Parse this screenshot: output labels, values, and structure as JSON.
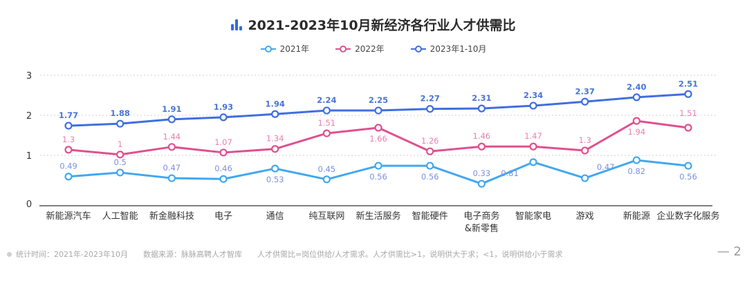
{
  "chart_data": {
    "type": "line",
    "title": "2021-2023年10月新经济各行业人才供需比",
    "xlabel": "",
    "ylabel": "",
    "ylim": [
      0,
      3
    ],
    "yticks": [
      0,
      1,
      2,
      3
    ],
    "grid": true,
    "legend_position": "top-center",
    "categories": [
      "新能源汽车",
      "人工智能",
      "新金融科技",
      "电子",
      "通信",
      "纯互联网",
      "新生活服务",
      "智能硬件",
      "电子商务\n&新零售",
      "智能家电",
      "游戏",
      "新能源",
      "企业数字化服务"
    ],
    "series": [
      {
        "name": "2021年",
        "color": "#42a8ee",
        "label_color": "#7b90df",
        "values": [
          0.49,
          0.5,
          0.47,
          0.46,
          0.53,
          0.45,
          0.56,
          0.56,
          0.33,
          0.81,
          0.47,
          0.82,
          0.56
        ],
        "plotted": [
          0.47,
          0.57,
          0.43,
          0.41,
          0.67,
          0.4,
          0.74,
          0.74,
          0.29,
          0.83,
          0.43,
          0.88,
          0.74
        ],
        "label_side": [
          "above",
          "above",
          "above",
          "above",
          "below",
          "above",
          "below",
          "below",
          "above",
          "below-left",
          "above-left",
          "below",
          "below"
        ]
      },
      {
        "name": "2022年",
        "color": "#e0508e",
        "label_color": "#ea80b0",
        "values": [
          1.3,
          1,
          1.44,
          1.07,
          1.34,
          1.51,
          1.66,
          1.26,
          1.46,
          1.47,
          1.3,
          1.94,
          1.51
        ],
        "plotted": [
          1.14,
          1.02,
          1.21,
          1.07,
          1.16,
          1.55,
          1.69,
          1.1,
          1.22,
          1.22,
          1.12,
          1.86,
          1.69
        ],
        "label_side": [
          "above",
          "above",
          "above",
          "above",
          "above",
          "above",
          "below",
          "above",
          "above",
          "above",
          "above",
          "below",
          "above-high"
        ]
      },
      {
        "name": "2023年1-10月",
        "color": "#3f6fe0",
        "label_color": "#4a74d6",
        "values": [
          1.77,
          1.88,
          1.91,
          1.93,
          1.94,
          2.24,
          2.25,
          2.27,
          2.31,
          2.34,
          2.37,
          2.4,
          2.51
        ],
        "value_labels": [
          "1.77",
          "1.88",
          "1.91",
          "1.93",
          "1.94",
          "2.24",
          "2.25",
          "2.27",
          "2.31",
          "2.34",
          "2.37",
          "2.40",
          "2.51"
        ],
        "plotted": [
          1.74,
          1.79,
          1.9,
          1.95,
          2.03,
          2.12,
          2.12,
          2.16,
          2.17,
          2.24,
          2.34,
          2.45,
          2.53
        ],
        "label_side": [
          "above",
          "above",
          "above",
          "above",
          "above",
          "above",
          "above",
          "above",
          "above",
          "above",
          "above",
          "above",
          "above"
        ]
      }
    ]
  },
  "legend": [
    {
      "label": "2021年",
      "color": "#42a8ee"
    },
    {
      "label": "2022年",
      "color": "#e0508e"
    },
    {
      "label": "2023年1-10月",
      "color": "#3f6fe0"
    }
  ],
  "title_icon": "bar-chart-icon",
  "title_icon_color": "#2f6be6",
  "footer": {
    "period": "统计时间：2021年-2023年10月",
    "source": "数据来源：脉脉高聘人才智库",
    "note": "人才供需比=岗位供给/人才需求。人才供需比>1，说明供大于求；<1，说明供给小于需求"
  },
  "page_number": "— 2"
}
